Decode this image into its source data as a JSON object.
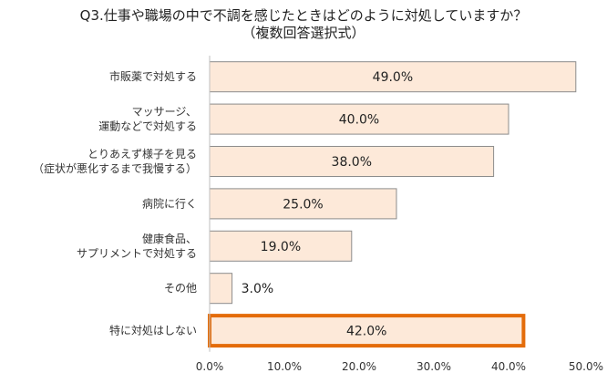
{
  "chart_data": {
    "type": "bar",
    "orientation": "horizontal",
    "title": [
      "Q3.仕事や職場の中で不調を感じたときはどのように対処していますか？",
      "（複数回答選択式）"
    ],
    "categories": [
      [
        "市販薬で対処する"
      ],
      [
        "マッサージ、",
        "運動などで対処する"
      ],
      [
        "とりあえず様子を見る",
        "（症状が悪化するまで我慢する）"
      ],
      [
        "病院に行く"
      ],
      [
        "健康食品、",
        "サプリメントで対処する"
      ],
      [
        "その他"
      ],
      [
        "特に対処はしない"
      ]
    ],
    "values": [
      49.0,
      40.0,
      38.0,
      25.0,
      19.0,
      3.0,
      42.0
    ],
    "value_labels": [
      "49.0%",
      "40.0%",
      "38.0%",
      "25.0%",
      "19.0%",
      "3.0%",
      "42.0%"
    ],
    "xlim": [
      0,
      50
    ],
    "ticks": [
      "0.0%",
      "10.0%",
      "20.0%",
      "30.0%",
      "40.0%",
      "50.0%"
    ],
    "tick_values": [
      0,
      10,
      20,
      30,
      40,
      50
    ],
    "highlight_index": 6,
    "grid": false,
    "colors": {
      "bar_fill": "#fde9d9",
      "bar_stroke": "#8c8c8c",
      "highlight_stroke": "#e46c0a",
      "axis": "#bfbfbf"
    }
  }
}
